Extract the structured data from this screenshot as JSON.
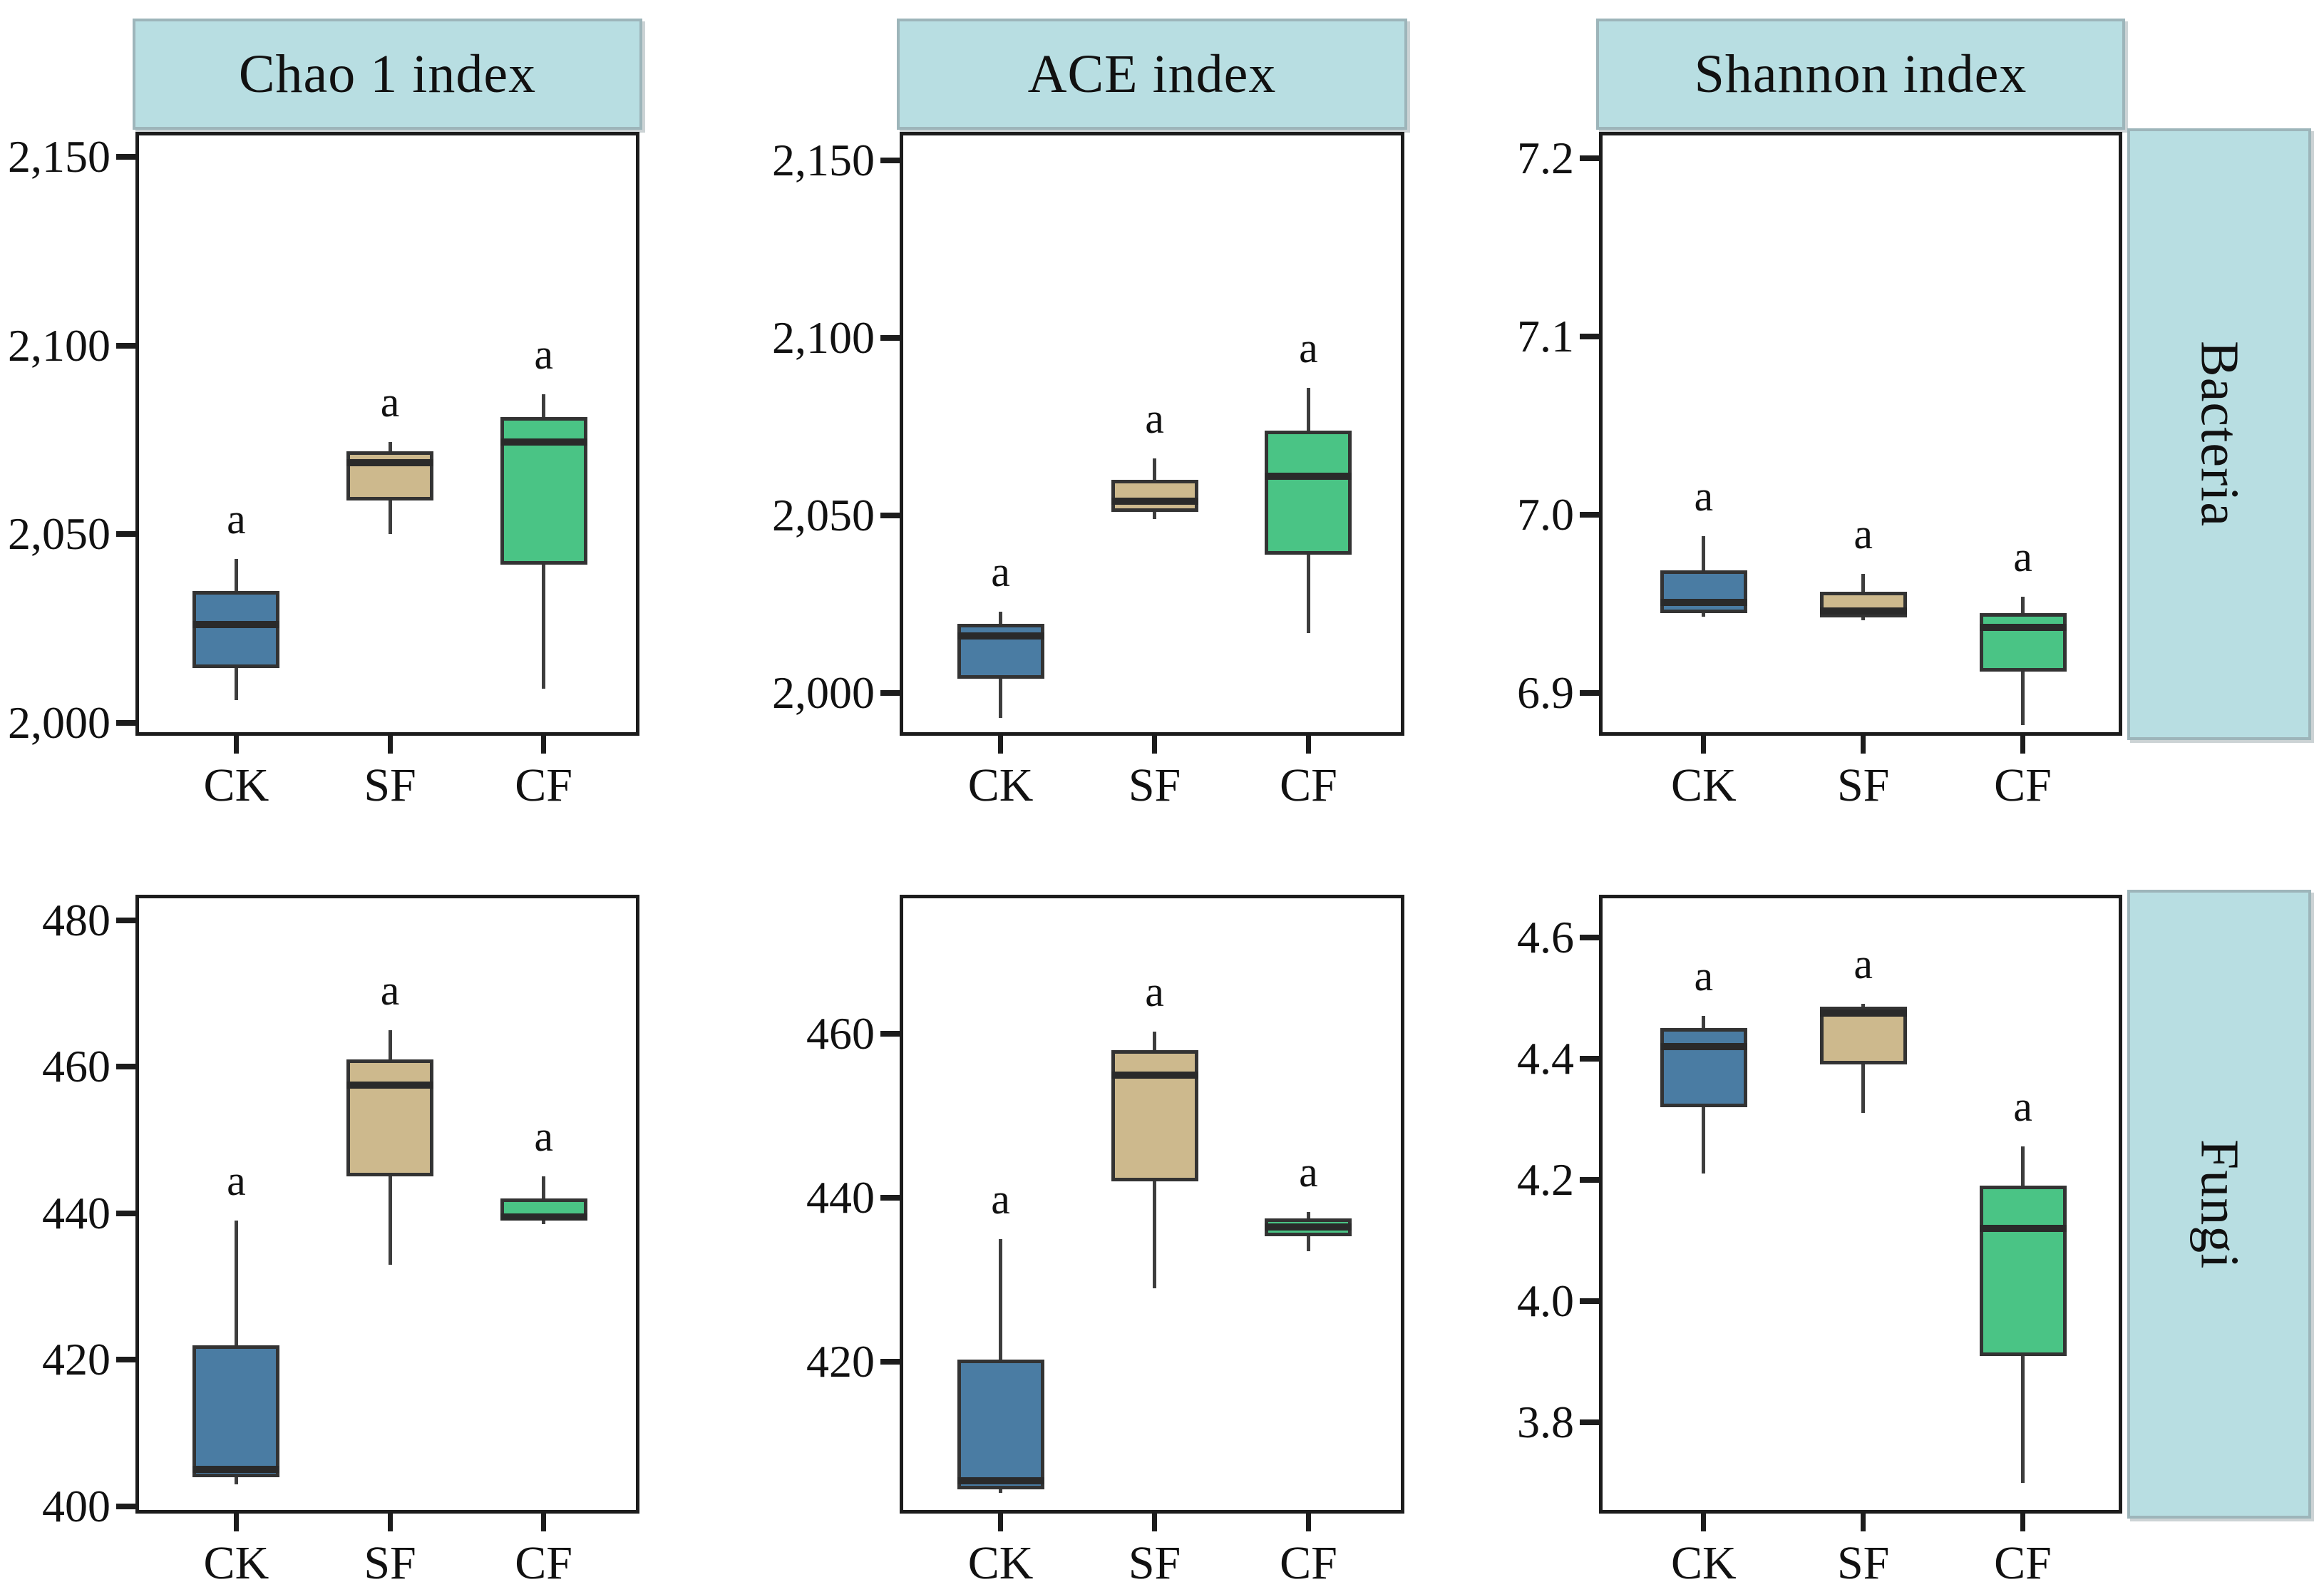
{
  "figure": {
    "background": "#ffffff",
    "significance_letter": "a",
    "categories": [
      "CK",
      "SF",
      "CF"
    ]
  },
  "colors": {
    "CK": "#4a7ca3",
    "SF": "#cdb98d",
    "CF": "#4ac485",
    "strip_fill": "#b8dee2",
    "strip_border": "#9db5ba",
    "axis": "#1c1c1c",
    "box_stroke": "#333333",
    "median": "#2a2a2a",
    "whisker": "#3d3d3d"
  },
  "strips": {
    "cols": [
      "Chao 1 index",
      "ACE index",
      "Shannon index"
    ],
    "rows": [
      "Bacteria",
      "Fungi"
    ]
  },
  "chart_data": [
    {
      "type": "boxplot",
      "row_strip": "Bacteria",
      "col_strip": "Chao 1 index",
      "grid": false,
      "ylim": [
        1996.6,
        2156.6
      ],
      "yticks": [
        {
          "value": 2000,
          "label": "2,000"
        },
        {
          "value": 2050,
          "label": "2,050"
        },
        {
          "value": 2100,
          "label": "2,100"
        },
        {
          "value": 2150,
          "label": "2,150"
        }
      ],
      "categories": [
        "CK",
        "SF",
        "CF"
      ],
      "boxes": [
        {
          "group": "CK",
          "min": 2006,
          "q1": 2014.5,
          "median": 2026,
          "q3": 2035,
          "max": 2043.5,
          "sig": "a"
        },
        {
          "group": "SF",
          "min": 2050,
          "q1": 2059,
          "median": 2069,
          "q3": 2072,
          "max": 2074.5,
          "sig": "a"
        },
        {
          "group": "CF",
          "min": 2009,
          "q1": 2042,
          "median": 2074.5,
          "q3": 2081,
          "max": 2087,
          "sig": "a"
        }
      ]
    },
    {
      "type": "boxplot",
      "row_strip": "Bacteria",
      "col_strip": "ACE index",
      "grid": false,
      "ylim": [
        1988,
        2158
      ],
      "yticks": [
        {
          "value": 2000,
          "label": "2,000"
        },
        {
          "value": 2050,
          "label": "2,050"
        },
        {
          "value": 2100,
          "label": "2,100"
        },
        {
          "value": 2150,
          "label": "2,150"
        }
      ],
      "categories": [
        "CK",
        "SF",
        "CF"
      ],
      "boxes": [
        {
          "group": "CK",
          "min": 1993,
          "q1": 2004,
          "median": 2016,
          "q3": 2019.5,
          "max": 2023,
          "sig": "a"
        },
        {
          "group": "SF",
          "min": 2049,
          "q1": 2051,
          "median": 2054,
          "q3": 2060,
          "max": 2066,
          "sig": "a"
        },
        {
          "group": "CF",
          "min": 2017,
          "q1": 2039,
          "median": 2061,
          "q3": 2074,
          "max": 2086,
          "sig": "a"
        }
      ]
    },
    {
      "type": "boxplot",
      "row_strip": "Bacteria",
      "col_strip": "Shannon index",
      "grid": false,
      "ylim": [
        6.876,
        7.2148
      ],
      "yticks": [
        {
          "value": 6.9,
          "label": "6.9"
        },
        {
          "value": 7.0,
          "label": "7.0"
        },
        {
          "value": 7.1,
          "label": "7.1"
        },
        {
          "value": 7.2,
          "label": "7.2"
        }
      ],
      "categories": [
        "CK",
        "SF",
        "CF"
      ],
      "boxes": [
        {
          "group": "CK",
          "min": 6.943,
          "q1": 6.945,
          "median": 6.951,
          "q3": 6.969,
          "max": 6.988,
          "sig": "a"
        },
        {
          "group": "SF",
          "min": 6.941,
          "q1": 6.9425,
          "median": 6.946,
          "q3": 6.957,
          "max": 6.967,
          "sig": "a"
        },
        {
          "group": "CF",
          "min": 6.882,
          "q1": 6.912,
          "median": 6.937,
          "q3": 6.945,
          "max": 6.954,
          "sig": "a"
        }
      ]
    },
    {
      "type": "boxplot",
      "row_strip": "Fungi",
      "col_strip": "Chao 1 index",
      "grid": false,
      "ylim": [
        399,
        483.5
      ],
      "yticks": [
        {
          "value": 400,
          "label": "400"
        },
        {
          "value": 420,
          "label": "420"
        },
        {
          "value": 440,
          "label": "440"
        },
        {
          "value": 460,
          "label": "460"
        },
        {
          "value": 480,
          "label": "480"
        }
      ],
      "categories": [
        "CK",
        "SF",
        "CF"
      ],
      "boxes": [
        {
          "group": "CK",
          "min": 403,
          "q1": 404,
          "median": 405,
          "q3": 422,
          "max": 439,
          "sig": "a"
        },
        {
          "group": "SF",
          "min": 433,
          "q1": 445,
          "median": 457.5,
          "q3": 461,
          "max": 465,
          "sig": "a"
        },
        {
          "group": "CF",
          "min": 438.5,
          "q1": 439,
          "median": 439.5,
          "q3": 442,
          "max": 445,
          "sig": "a"
        }
      ]
    },
    {
      "type": "boxplot",
      "row_strip": "Fungi",
      "col_strip": "ACE index",
      "grid": false,
      "ylim": [
        401.5,
        477
      ],
      "yticks": [
        {
          "value": 420,
          "label": "420"
        },
        {
          "value": 440,
          "label": "440"
        },
        {
          "value": 460,
          "label": "460"
        }
      ],
      "categories": [
        "CK",
        "SF",
        "CF"
      ],
      "boxes": [
        {
          "group": "CK",
          "min": 404,
          "q1": 404.5,
          "median": 405.5,
          "q3": 420.3,
          "max": 435,
          "sig": "a"
        },
        {
          "group": "SF",
          "min": 429,
          "q1": 442,
          "median": 455,
          "q3": 458,
          "max": 460.3,
          "sig": "a"
        },
        {
          "group": "CF",
          "min": 433.5,
          "q1": 435.3,
          "median": 436.5,
          "q3": 437.5,
          "max": 438.3,
          "sig": "a"
        }
      ]
    },
    {
      "type": "boxplot",
      "row_strip": "Fungi",
      "col_strip": "Shannon index",
      "grid": false,
      "ylim": [
        3.65,
        4.67
      ],
      "yticks": [
        {
          "value": 3.8,
          "label": "3.8"
        },
        {
          "value": 4.0,
          "label": "4.0"
        },
        {
          "value": 4.2,
          "label": "4.2"
        },
        {
          "value": 4.4,
          "label": "4.4"
        },
        {
          "value": 4.6,
          "label": "4.6"
        }
      ],
      "categories": [
        "CK",
        "SF",
        "CF"
      ],
      "boxes": [
        {
          "group": "CK",
          "min": 4.21,
          "q1": 4.32,
          "median": 4.42,
          "q3": 4.45,
          "max": 4.47,
          "sig": "a"
        },
        {
          "group": "SF",
          "min": 4.31,
          "q1": 4.39,
          "median": 4.475,
          "q3": 4.485,
          "max": 4.49,
          "sig": "a"
        },
        {
          "group": "CF",
          "min": 3.7,
          "q1": 3.91,
          "median": 4.12,
          "q3": 4.19,
          "max": 4.255,
          "sig": "a"
        }
      ]
    }
  ]
}
